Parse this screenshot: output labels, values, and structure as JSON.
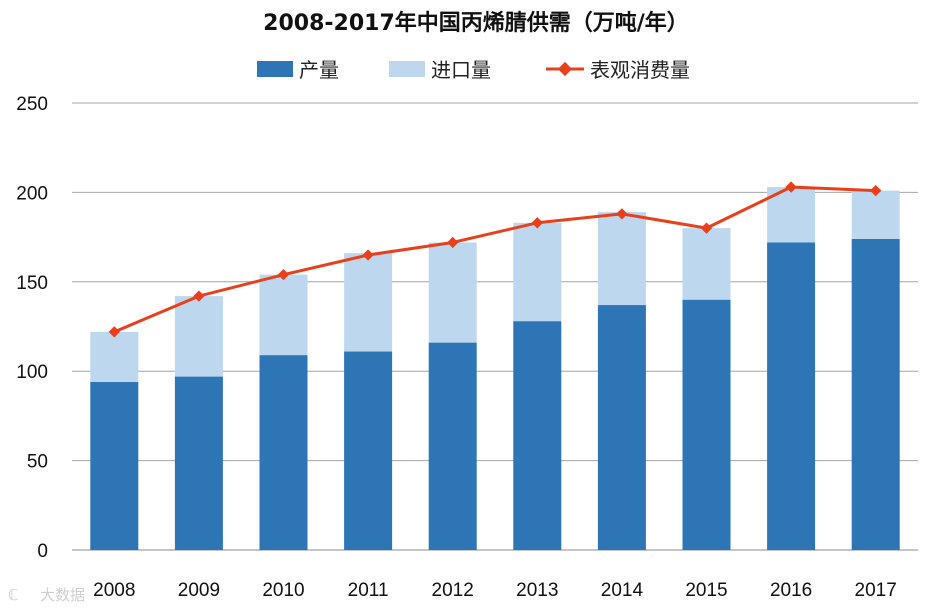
{
  "chart_data": {
    "type": "bar",
    "stacked": true,
    "title": "2008-2017年中国丙烯腈供需（万吨/年）",
    "categories": [
      "2008",
      "2009",
      "2010",
      "2011",
      "2012",
      "2013",
      "2014",
      "2015",
      "2016",
      "2017"
    ],
    "series": [
      {
        "name": "产量",
        "kind": "bar",
        "color": "#2e75b6",
        "values": [
          94,
          97,
          109,
          111,
          116,
          128,
          137,
          140,
          172,
          174
        ]
      },
      {
        "name": "进口量",
        "kind": "bar",
        "color": "#bdd7ee",
        "values": [
          28,
          45,
          45,
          55,
          56,
          55,
          52,
          40,
          31,
          27
        ]
      },
      {
        "name": "表观消费量",
        "kind": "line",
        "color": "#e8401c",
        "values": [
          122,
          142,
          154,
          165,
          172,
          183,
          188,
          180,
          203,
          201
        ]
      }
    ],
    "y_ticks": [
      "0",
      "50",
      "100",
      "150",
      "200",
      "250"
    ],
    "ylim": [
      0,
      250
    ],
    "legend_position": "top-center",
    "grid": true
  },
  "watermark": "大数据"
}
